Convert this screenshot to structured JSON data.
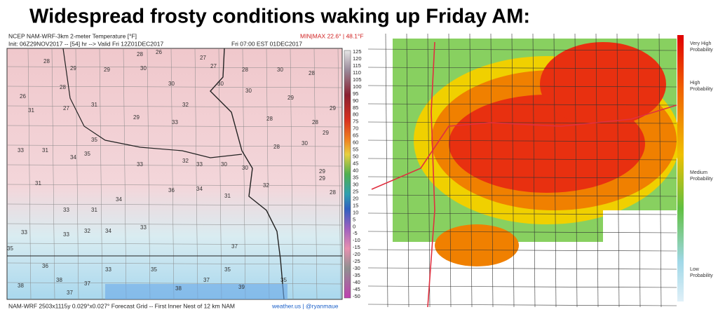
{
  "header": {
    "title": "Widespread frosty conditions waking up Friday AM:"
  },
  "left_map": {
    "product": "NCEP NAM-WRF-3km 2-meter Temperature [°F]",
    "init": "Init: 06Z29NOV2017 -- [54] hr --> Valid Fri 12Z01DEC2017",
    "valid": "Fri 07:00 EST 01DEC2017",
    "minmax": "MIN|MAX 22.6° | 48.1°F",
    "footer": "NAM-WRF 2503x1115y 0.029°x0.027° Forecast Grid -- First Inner Nest of 12 km NAM",
    "credit": "weather.us | @ryanmaue",
    "colorbar_ticks": [
      125,
      120,
      115,
      110,
      105,
      100,
      95,
      90,
      85,
      80,
      75,
      70,
      65,
      60,
      55,
      50,
      45,
      40,
      35,
      30,
      25,
      20,
      15,
      10,
      5,
      0,
      -5,
      -10,
      -15,
      -20,
      -25,
      -30,
      -35,
      -40,
      -45,
      -50
    ],
    "temperature_labels": [
      28,
      26,
      27,
      28,
      29,
      29,
      30,
      27,
      28,
      30,
      28,
      26,
      28,
      30,
      31,
      30,
      30,
      29,
      27,
      29,
      31,
      28,
      28,
      32,
      29,
      33,
      29,
      30,
      28,
      29,
      35,
      35,
      33,
      34,
      31,
      33,
      33,
      32,
      30,
      30,
      31,
      36,
      34,
      31,
      29,
      28,
      31,
      33,
      34,
      32,
      33,
      34,
      33,
      32,
      33,
      37,
      35,
      36,
      33,
      35,
      37,
      38,
      39,
      35,
      38,
      37,
      37,
      35,
      38
    ]
  },
  "right_map": {
    "legend": [
      [
        "Very High",
        "Probability"
      ],
      [
        "High",
        "Probability"
      ],
      [
        "Medium",
        "Probability"
      ],
      [
        "Low",
        "Probability"
      ]
    ]
  }
}
